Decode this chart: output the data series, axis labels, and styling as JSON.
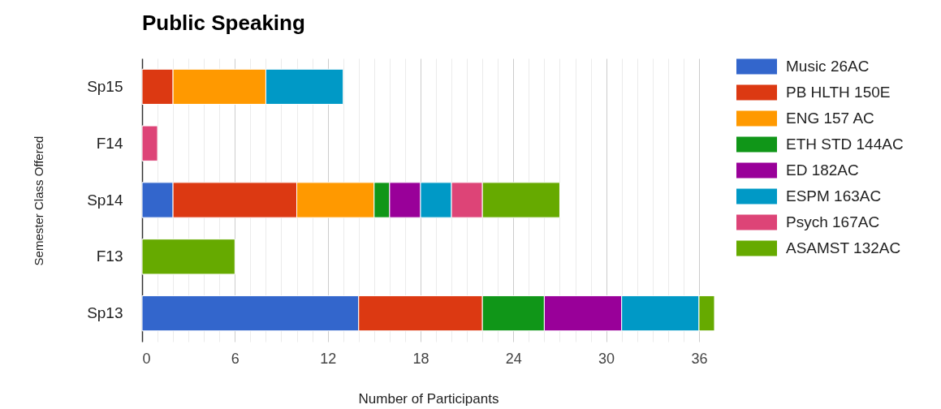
{
  "chart_data": {
    "type": "bar",
    "orientation": "horizontal",
    "stacked": true,
    "title": "Public Speaking",
    "xlabel": "Number of Participants",
    "ylabel": "Semester Class Offered",
    "categories": [
      "Sp15",
      "F14",
      "Sp14",
      "F13",
      "Sp13"
    ],
    "series": [
      {
        "name": "Music 26AC",
        "color": "#3366cc",
        "values": [
          null,
          null,
          2,
          null,
          14
        ]
      },
      {
        "name": "PB HLTH 150E",
        "color": "#dc3912",
        "values": [
          2,
          null,
          8,
          null,
          8
        ]
      },
      {
        "name": "ENG 157 AC",
        "color": "#ff9900",
        "values": [
          6,
          null,
          5,
          null,
          null
        ]
      },
      {
        "name": "ETH STD 144AC",
        "color": "#109618",
        "values": [
          null,
          null,
          1,
          null,
          4
        ]
      },
      {
        "name": "ED 182AC",
        "color": "#990099",
        "values": [
          null,
          null,
          2,
          null,
          5
        ]
      },
      {
        "name": "ESPM 163AC",
        "color": "#0099c6",
        "values": [
          5,
          null,
          2,
          null,
          5
        ]
      },
      {
        "name": "Psych 167AC",
        "color": "#dd4477",
        "values": [
          null,
          1,
          2,
          null,
          null
        ]
      },
      {
        "name": "ASAMST 132AC",
        "color": "#66aa00",
        "values": [
          null,
          null,
          5,
          6,
          1
        ]
      }
    ],
    "xlim": [
      0,
      37
    ],
    "xticks": [
      0,
      {
        "value": 1,
        "label": null
      },
      {
        "value": 2,
        "label": null
      },
      {
        "value": 3,
        "label": null
      },
      {
        "value": 4,
        "label": null
      },
      {
        "value": 5,
        "label": null
      },
      6,
      {
        "value": 7,
        "label": null
      },
      {
        "value": 8,
        "label": null
      },
      {
        "value": 9,
        "label": null
      },
      {
        "value": 10,
        "label": null
      },
      {
        "value": 11,
        "label": null
      },
      12,
      {
        "value": 13,
        "label": null
      },
      {
        "value": 14,
        "label": null
      },
      {
        "value": 15,
        "label": null
      },
      {
        "value": 16,
        "label": null
      },
      {
        "value": 17,
        "label": null
      },
      18,
      {
        "value": 19,
        "label": null
      },
      {
        "value": 20,
        "label": null
      },
      {
        "value": 21,
        "label": null
      },
      {
        "value": 22,
        "label": null
      },
      {
        "value": 23,
        "label": null
      },
      24,
      {
        "value": 25,
        "label": null
      },
      {
        "value": 26,
        "label": null
      },
      {
        "value": 27,
        "label": null
      },
      {
        "value": 28,
        "label": null
      },
      {
        "value": 29,
        "label": null
      },
      30,
      {
        "value": 31,
        "label": null
      },
      {
        "value": 32,
        "label": null
      },
      {
        "value": 33,
        "label": null
      },
      {
        "value": 34,
        "label": null
      },
      {
        "value": 35,
        "label": null
      },
      36
    ],
    "grid": true,
    "legend": "right"
  }
}
